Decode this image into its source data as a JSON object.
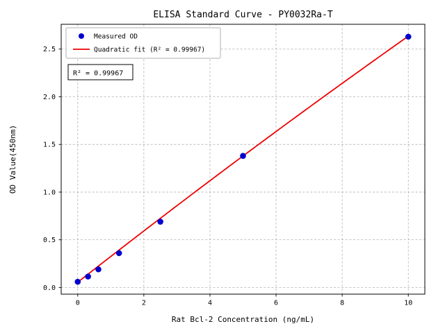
{
  "chart_data": {
    "type": "scatter",
    "title": "ELISA Standard Curve - PY0032Ra-T",
    "xlabel": "Rat Bcl-2 Concentration (ng/mL)",
    "ylabel": "OD Value(450nm)",
    "xlim": [
      -0.5,
      10.5
    ],
    "ylim": [
      -0.07,
      2.76
    ],
    "xtick_values": [
      0,
      2,
      4,
      6,
      8,
      10
    ],
    "xtick_labels": [
      "0",
      "2",
      "4",
      "6",
      "8",
      "10"
    ],
    "ytick_values": [
      0.0,
      0.5,
      1.0,
      1.5,
      2.0,
      2.5
    ],
    "ytick_labels": [
      "0.0",
      "0.5",
      "1.0",
      "1.5",
      "2.0",
      "2.5"
    ],
    "grid": true,
    "grid_style": "dashed",
    "grid_color": "#b0b0b0",
    "background": "#ffffff",
    "legend": {
      "position": "upper-left",
      "entries": [
        {
          "label": "Measured OD",
          "type": "marker",
          "color": "#0000cd"
        },
        {
          "label": "Quadratic fit (R² = 0.99967)",
          "type": "line",
          "color": "#ee0000"
        }
      ]
    },
    "annotation": {
      "text": "R² = 0.99967"
    },
    "series": [
      {
        "name": "Measured OD",
        "type": "scatter",
        "color": "#0000cd",
        "x": [
          0,
          0.312,
          0.625,
          1.25,
          2.5,
          5,
          10
        ],
        "y": [
          0.06,
          0.115,
          0.19,
          0.36,
          0.69,
          1.38,
          2.63
        ]
      },
      {
        "name": "Quadratic fit",
        "type": "line",
        "color": "#ee0000",
        "fit": {
          "a": 0.055,
          "b": 0.2715,
          "c": -0.00135
        },
        "x_range": [
          0,
          10
        ],
        "r_squared": 0.99967
      }
    ]
  }
}
